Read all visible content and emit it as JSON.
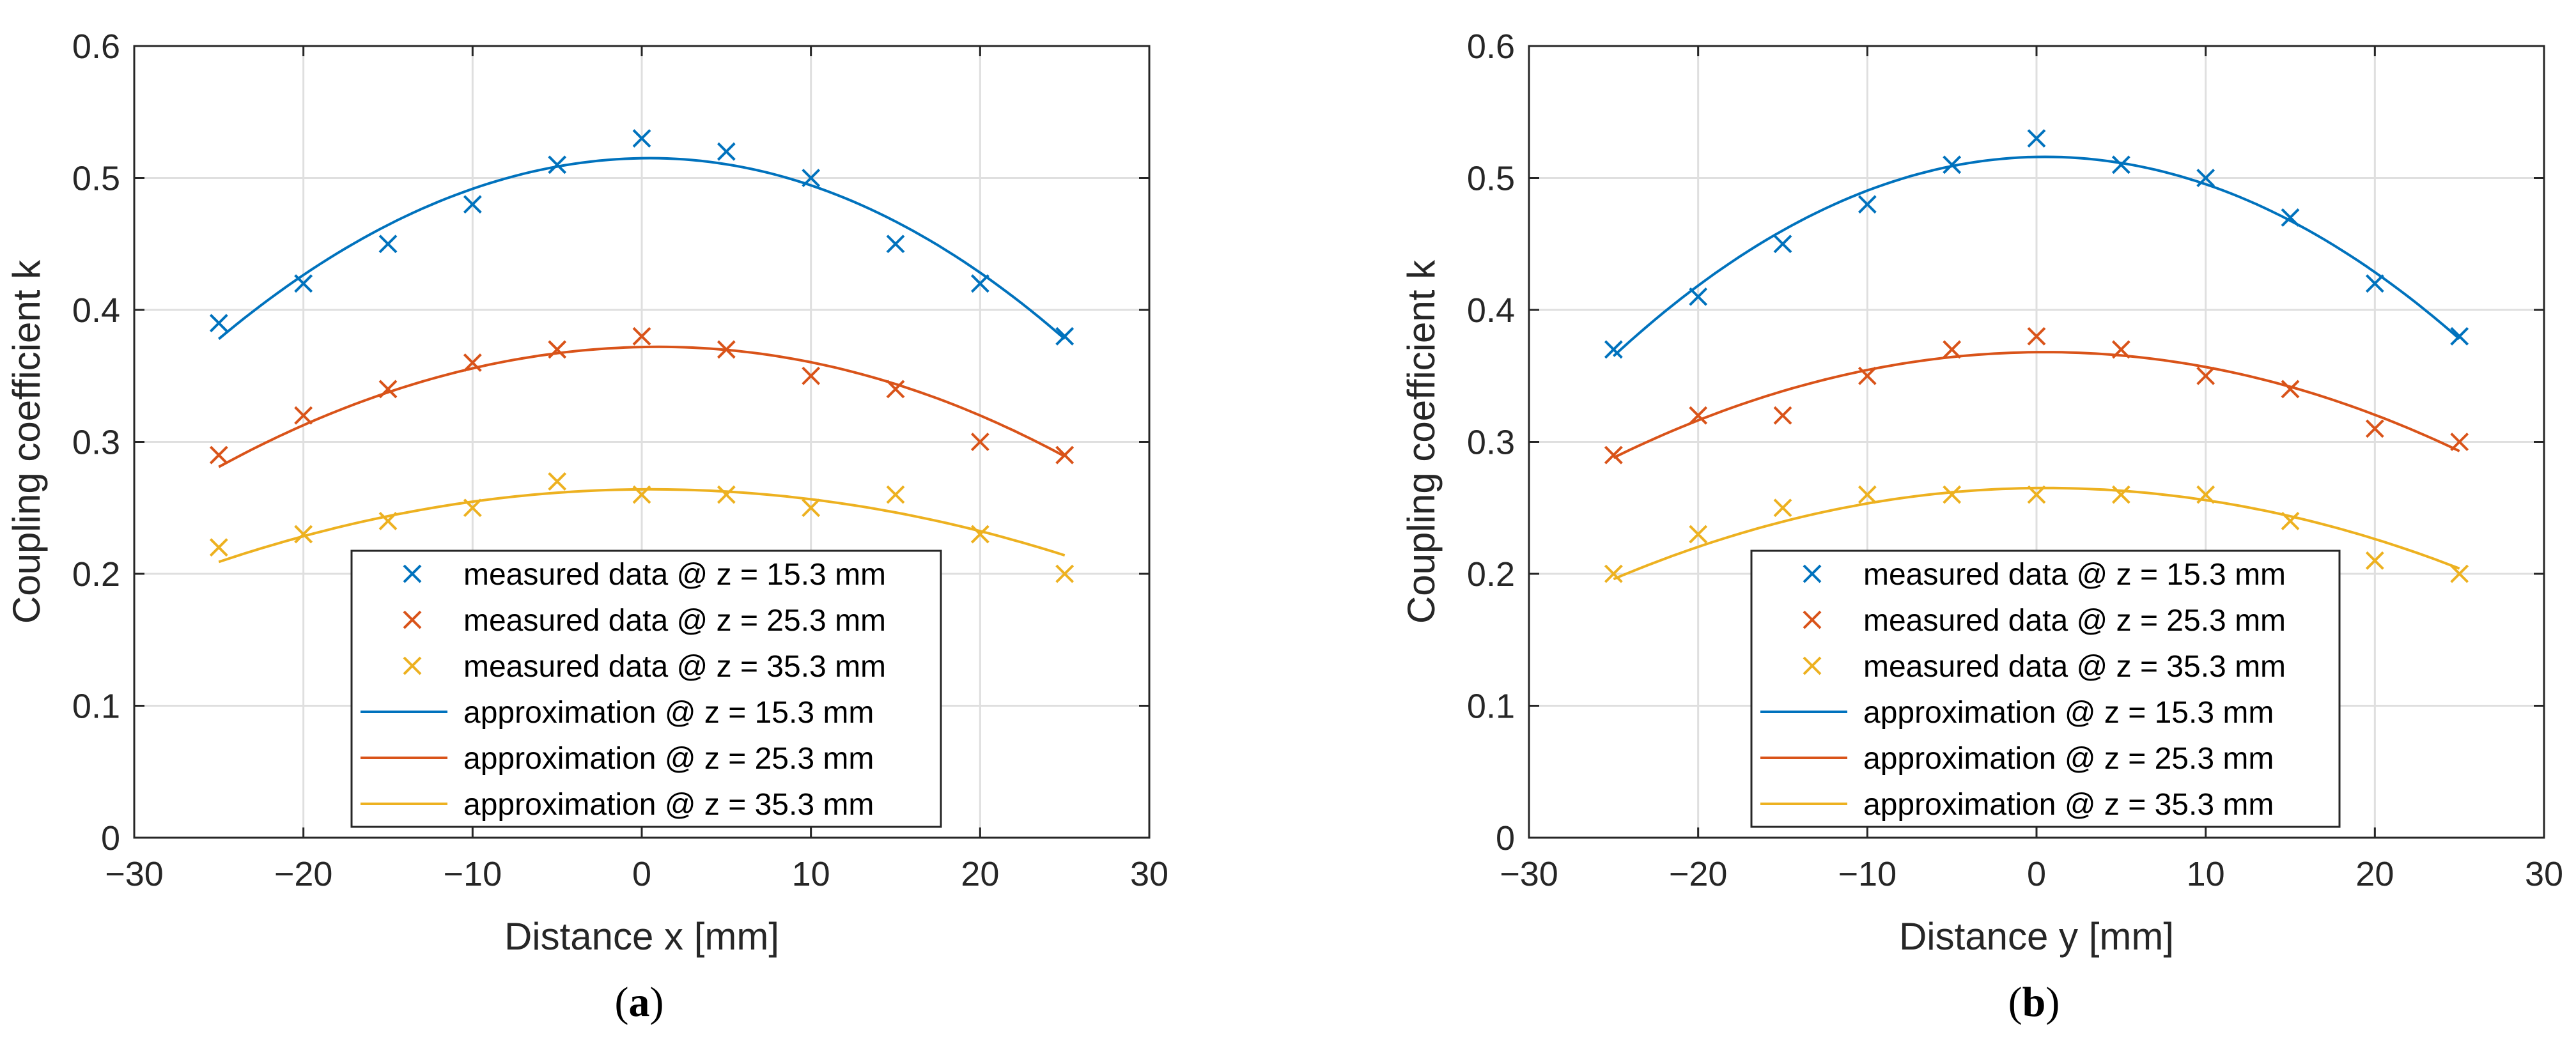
{
  "chart_data": [
    {
      "type": "line",
      "panel_label": "a",
      "xlabel": "Distance x [mm]",
      "ylabel": "Coupling coefficient k",
      "xlim": [
        -30,
        30
      ],
      "ylim": [
        0,
        0.6
      ],
      "xticks": [
        -30,
        -20,
        -10,
        0,
        10,
        20,
        30
      ],
      "xtick_labels": [
        "−30",
        "−20",
        "−10",
        "0",
        "10",
        "20",
        "30"
      ],
      "yticks": [
        0,
        0.1,
        0.2,
        0.3,
        0.4,
        0.5,
        0.6
      ],
      "ytick_labels": [
        "0",
        "0.1",
        "0.2",
        "0.3",
        "0.4",
        "0.5",
        "0.6"
      ],
      "grid": true,
      "legend_position": "bottom-center",
      "x": [
        -25,
        -20,
        -15,
        -10,
        -5,
        0,
        5,
        10,
        15,
        20,
        25
      ],
      "series": [
        {
          "name": "measured data @ z = 15.3 mm",
          "kind": "scatter",
          "color": "#0072BD",
          "values": [
            0.39,
            0.42,
            0.45,
            0.48,
            0.51,
            0.53,
            0.52,
            0.5,
            0.45,
            0.42,
            0.38
          ]
        },
        {
          "name": "measured data @ z = 25.3 mm",
          "kind": "scatter",
          "color": "#D95319",
          "values": [
            0.29,
            0.32,
            0.34,
            0.36,
            0.37,
            0.38,
            0.37,
            0.35,
            0.34,
            0.3,
            0.29
          ]
        },
        {
          "name": "measured data @ z = 35.3 mm",
          "kind": "scatter",
          "color": "#EDB120",
          "values": [
            0.22,
            0.23,
            0.24,
            0.25,
            0.27,
            0.26,
            0.26,
            0.25,
            0.26,
            0.23,
            0.2
          ]
        },
        {
          "name": "approximation @ z = 15.3 mm",
          "kind": "line",
          "color": "#0072BD",
          "peak_x": 0.5,
          "peak_y": 0.515,
          "end_left": 0.378,
          "end_right": 0.378
        },
        {
          "name": "approximation @ z = 25.3 mm",
          "kind": "line",
          "color": "#D95319",
          "peak_x": 1.0,
          "peak_y": 0.372,
          "end_left": 0.281,
          "end_right": 0.289
        },
        {
          "name": "approximation @ z = 35.3 mm",
          "kind": "line",
          "color": "#EDB120",
          "peak_x": 0.5,
          "peak_y": 0.264,
          "end_left": 0.209,
          "end_right": 0.214
        }
      ]
    },
    {
      "type": "line",
      "panel_label": "b",
      "xlabel": "Distance y [mm]",
      "ylabel": "Coupling coefficient k",
      "xlim": [
        -30,
        30
      ],
      "ylim": [
        0,
        0.6
      ],
      "xticks": [
        -30,
        -20,
        -10,
        0,
        10,
        20,
        30
      ],
      "xtick_labels": [
        "−30",
        "−20",
        "−10",
        "0",
        "10",
        "20",
        "30"
      ],
      "yticks": [
        0,
        0.1,
        0.2,
        0.3,
        0.4,
        0.5,
        0.6
      ],
      "ytick_labels": [
        "0",
        "0.1",
        "0.2",
        "0.3",
        "0.4",
        "0.5",
        "0.6"
      ],
      "grid": true,
      "legend_position": "bottom-center",
      "x": [
        -25,
        -20,
        -15,
        -10,
        -5,
        0,
        5,
        10,
        15,
        20,
        25
      ],
      "series": [
        {
          "name": "measured data @ z = 15.3 mm",
          "kind": "scatter",
          "color": "#0072BD",
          "values": [
            0.37,
            0.41,
            0.45,
            0.48,
            0.51,
            0.53,
            0.51,
            0.5,
            0.47,
            0.42,
            0.38
          ]
        },
        {
          "name": "measured data @ z = 25.3 mm",
          "kind": "scatter",
          "color": "#D95319",
          "values": [
            0.29,
            0.32,
            0.32,
            0.35,
            0.37,
            0.38,
            0.37,
            0.35,
            0.34,
            0.31,
            0.3
          ]
        },
        {
          "name": "measured data @ z = 35.3 mm",
          "kind": "scatter",
          "color": "#EDB120",
          "values": [
            0.2,
            0.23,
            0.25,
            0.26,
            0.26,
            0.26,
            0.26,
            0.26,
            0.24,
            0.21,
            0.2
          ]
        },
        {
          "name": "approximation @ z = 15.3 mm",
          "kind": "line",
          "color": "#0072BD",
          "peak_x": 0.5,
          "peak_y": 0.516,
          "end_left": 0.365,
          "end_right": 0.378
        },
        {
          "name": "approximation @ z = 25.3 mm",
          "kind": "line",
          "color": "#D95319",
          "peak_x": 0.5,
          "peak_y": 0.368,
          "end_left": 0.288,
          "end_right": 0.293
        },
        {
          "name": "approximation @ z = 35.3 mm",
          "kind": "line",
          "color": "#EDB120",
          "peak_x": 0.5,
          "peak_y": 0.265,
          "end_left": 0.196,
          "end_right": 0.204
        }
      ]
    }
  ]
}
